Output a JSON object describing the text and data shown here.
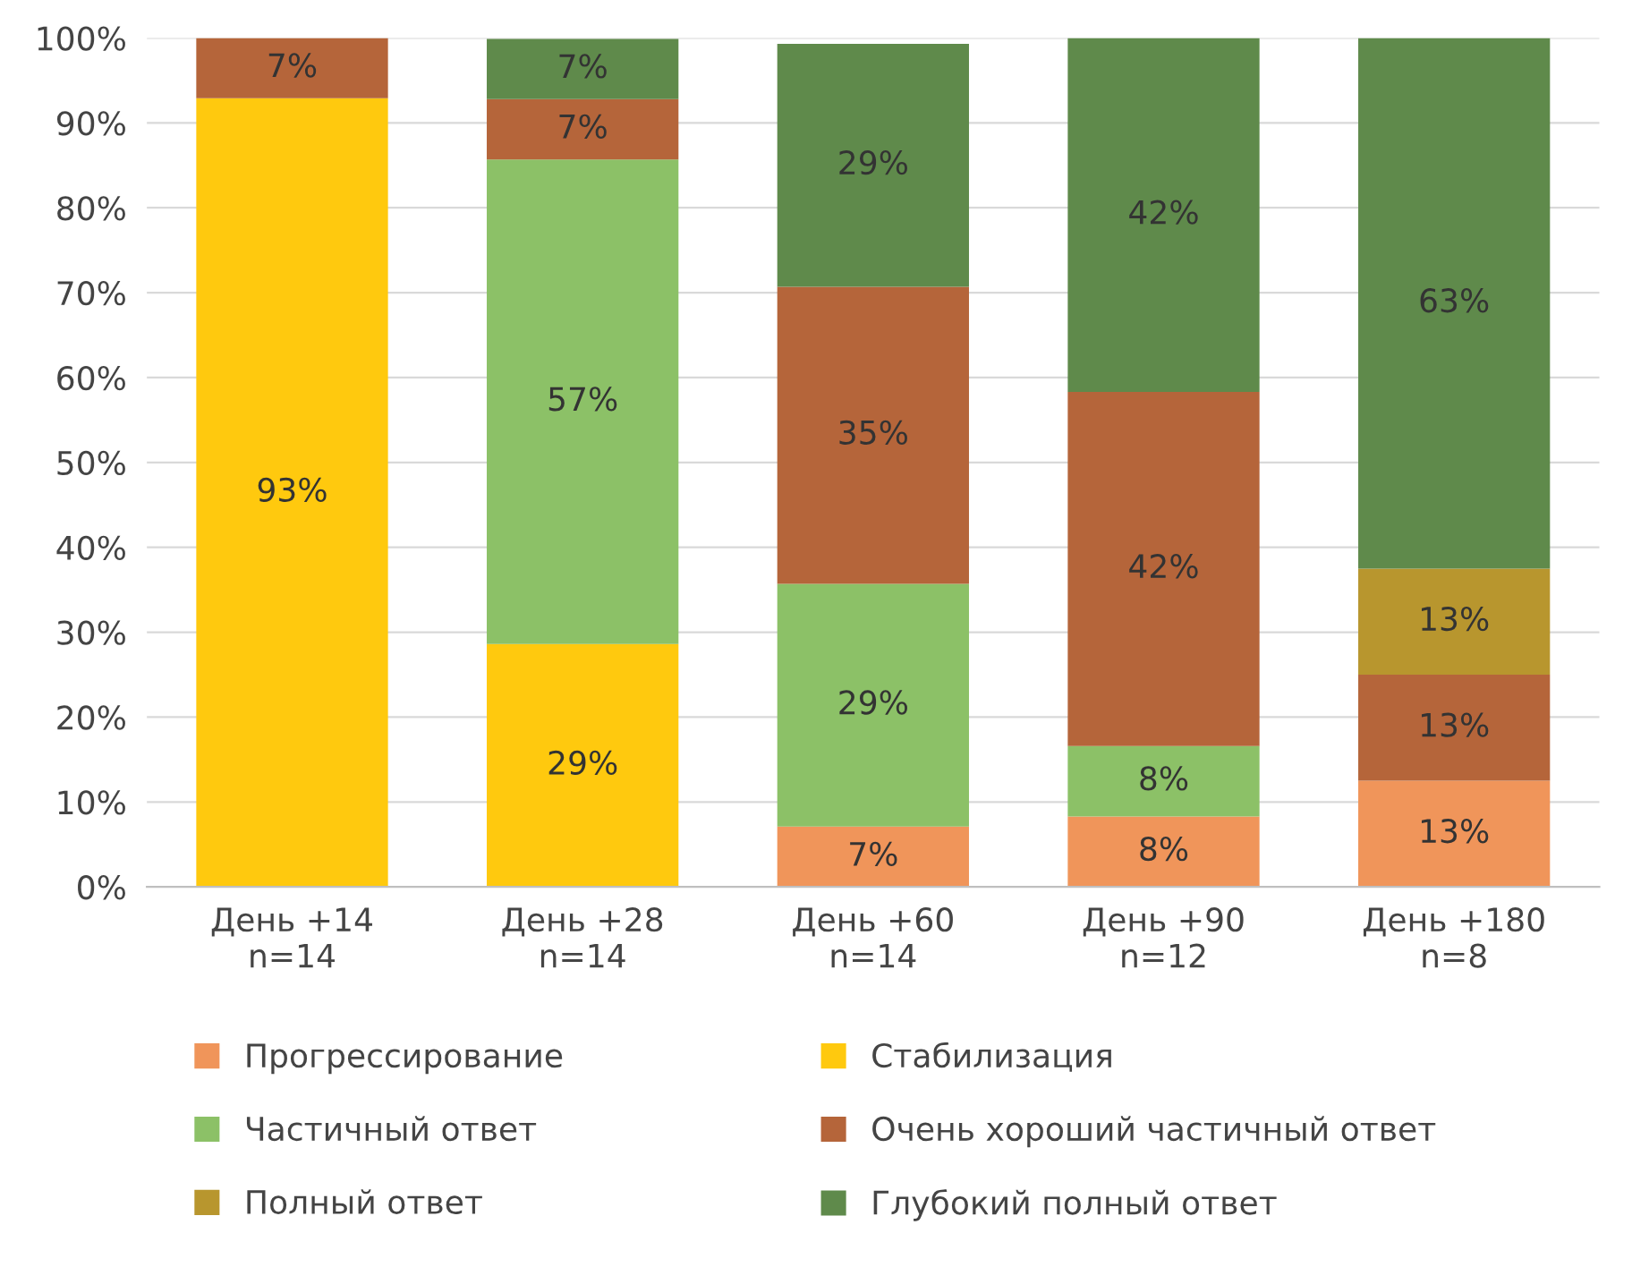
{
  "chart_data": {
    "type": "bar",
    "stacked": true,
    "categories": [
      "День +14\nn=14",
      "День +28\nn=14",
      "День +60\nn=14",
      "День +90\nn=12",
      "День +180\nn=8"
    ],
    "series": [
      {
        "name": "Прогрессирование",
        "color": "#f0955a",
        "values": [
          null,
          null,
          7.1,
          8.3,
          12.5
        ],
        "value_labels": [
          null,
          null,
          "7%",
          "8%",
          "13%"
        ]
      },
      {
        "name": "Стабилизация",
        "color": "#ffc90e",
        "values": [
          92.9,
          28.6,
          null,
          null,
          null
        ],
        "value_labels": [
          "93%",
          "29%",
          null,
          null,
          null
        ]
      },
      {
        "name": "Частичный ответ",
        "color": "#8cc167",
        "values": [
          null,
          57.1,
          28.6,
          8.3,
          null
        ],
        "value_labels": [
          null,
          "57%",
          "29%",
          "8%",
          null
        ]
      },
      {
        "name": "Очень хороший частичный ответ",
        "color": "#b5653a",
        "values": [
          7.1,
          7.1,
          35,
          41.7,
          12.5
        ],
        "value_labels": [
          "7%",
          "7%",
          "35%",
          "42%",
          "13%"
        ]
      },
      {
        "name": "Полный ответ",
        "color": "#b8962e",
        "values": [
          null,
          null,
          null,
          null,
          12.5
        ],
        "value_labels": [
          null,
          null,
          null,
          null,
          "13%"
        ]
      },
      {
        "name": "Глубокий полный ответ",
        "color": "#5f8a4b",
        "values": [
          null,
          7.1,
          28.6,
          41.7,
          62.5
        ],
        "value_labels": [
          null,
          "7%",
          "29%",
          "42%",
          "63%"
        ]
      }
    ],
    "ylim": [
      0,
      100
    ],
    "yticks": [
      {
        "value": 0,
        "label": "0%"
      },
      {
        "value": 10,
        "label": "10%"
      },
      {
        "value": 20,
        "label": "20%"
      },
      {
        "value": 30,
        "label": "30%"
      },
      {
        "value": 40,
        "label": "40%"
      },
      {
        "value": 50,
        "label": "50%"
      },
      {
        "value": 60,
        "label": "60%"
      },
      {
        "value": 70,
        "label": "70%"
      },
      {
        "value": 80,
        "label": "80%"
      },
      {
        "value": 90,
        "label": "90%"
      },
      {
        "value": 100,
        "label": "100%"
      }
    ],
    "grid": "y",
    "legend": "bottom"
  }
}
